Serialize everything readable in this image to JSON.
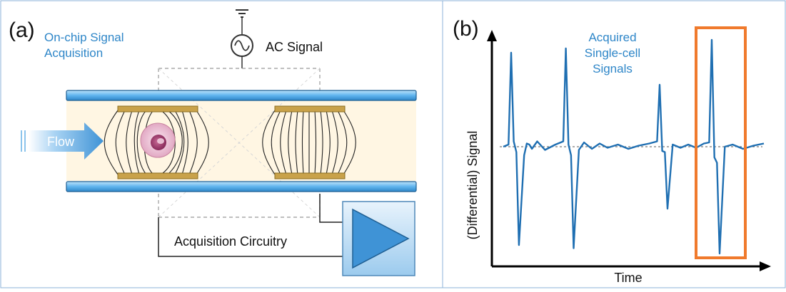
{
  "panel_a": {
    "label": "(a)",
    "subtitle_line1": "On-chip Signal",
    "subtitle_line2": "Acquisition",
    "ac_signal_label": "AC Signal",
    "flow_label": "Flow",
    "circuit_label": "Acquisition Circuitry"
  },
  "panel_b": {
    "label": "(b)",
    "annotation_line1": "Acquired",
    "annotation_line2": "Single-cell",
    "annotation_line3": "Signals",
    "xlabel": "Time",
    "ylabel": "(Differential) Signal"
  },
  "colors": {
    "accent_blue": "#2e86c8",
    "trace_blue": "#1f6fb2",
    "highlight_orange": "#f07a2c",
    "electrode_gold": "#c9a24a",
    "channel_fill": "#fff6e3"
  },
  "chart_data": {
    "type": "line",
    "title": "",
    "xlabel": "Time",
    "ylabel": "(Differential) Signal",
    "series": [
      {
        "x": [
          0.0,
          0.02,
          0.03,
          0.04,
          0.05,
          0.06,
          0.08,
          0.09,
          0.1,
          0.11,
          0.13,
          0.16,
          0.2,
          0.23,
          0.24,
          0.25,
          0.26,
          0.27,
          0.29,
          0.31,
          0.34,
          0.37,
          0.4,
          0.44,
          0.48,
          0.52,
          0.56,
          0.59,
          0.6,
          0.61,
          0.62,
          0.63,
          0.65,
          0.68,
          0.71,
          0.74,
          0.77,
          0.79,
          0.8,
          0.81,
          0.82,
          0.83,
          0.85,
          0.88,
          0.92,
          0.96,
          1.0
        ],
        "y": [
          0.0,
          0.02,
          0.88,
          0.05,
          -0.05,
          -0.92,
          -0.08,
          0.03,
          0.02,
          -0.02,
          0.05,
          -0.03,
          0.02,
          0.05,
          0.92,
          0.02,
          -0.08,
          -0.95,
          -0.03,
          0.04,
          -0.02,
          0.03,
          -0.01,
          0.02,
          -0.02,
          0.01,
          0.03,
          0.05,
          0.58,
          -0.04,
          -0.05,
          -0.58,
          0.02,
          -0.01,
          0.02,
          -0.01,
          0.03,
          0.04,
          1.0,
          -0.1,
          -0.15,
          -1.0,
          0.0,
          0.02,
          -0.02,
          0.01,
          0.03
        ]
      }
    ],
    "highlight_index": 3
  }
}
